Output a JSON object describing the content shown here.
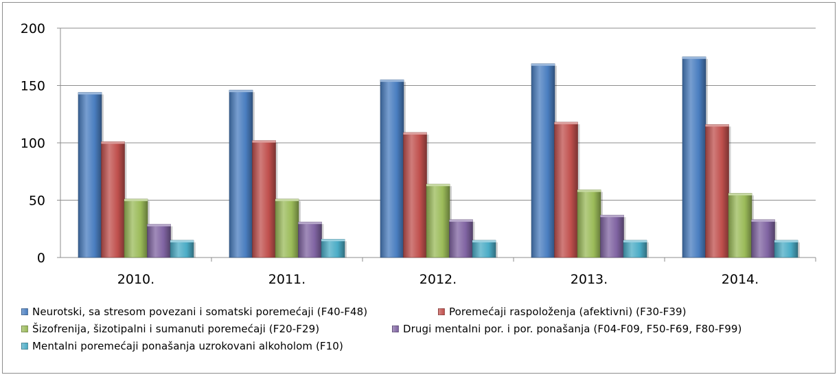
{
  "chart_data": {
    "type": "bar",
    "title": "",
    "xlabel": "",
    "ylabel": "",
    "ylim": [
      0,
      200
    ],
    "yticks": [
      0,
      50,
      100,
      150,
      200
    ],
    "categories": [
      "2010.",
      "2011.",
      "2012.",
      "2013.",
      "2014."
    ],
    "grid": true,
    "legend_position": "bottom",
    "series": [
      {
        "name": "Neurotski, sa stresom povezani i somatski poremećaji (F40-F48)",
        "color": "#4a7ec0",
        "values": [
          144,
          146,
          155,
          169,
          175
        ]
      },
      {
        "name": "Poremećaji raspoloženja (afektivni) (F30-F39)",
        "color": "#c0504d",
        "values": [
          101,
          102,
          109,
          118,
          116
        ]
      },
      {
        "name": "Šizofrenija, šizotipalni i sumanuti poremećaji (F20-F29)",
        "color": "#9bbb59",
        "values": [
          51,
          51,
          64,
          59,
          56
        ]
      },
      {
        "name": "Drugi mentalni por. i por. ponašanja (F04-F09, F50-F69, F80-F99)",
        "color": "#8064a2",
        "values": [
          29,
          31,
          33,
          37,
          33
        ]
      },
      {
        "name": "Mentalni poremećaji ponašanja uzrokovani alkoholom (F10)",
        "color": "#4bacc6",
        "values": [
          15,
          16,
          15,
          15,
          15
        ]
      }
    ]
  }
}
